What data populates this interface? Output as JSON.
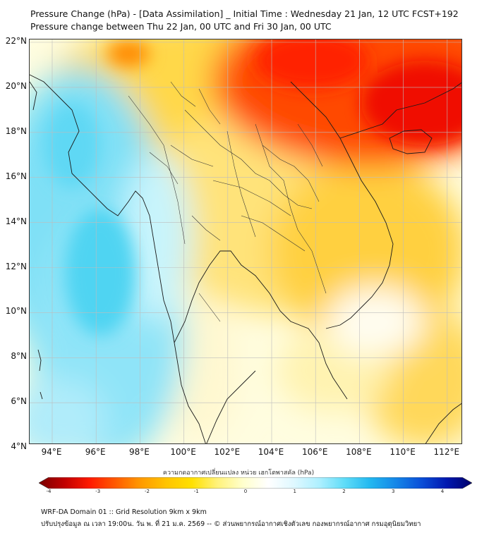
{
  "title_line1": "Pressure Change (hPa) - [Data Assimilation] _ Initial Time : Wednesday 21 Jan, 12 UTC FCST+192",
  "title_line2": "Pressure change between Thu 22 Jan, 00 UTC and Fri 30 Jan, 00 UTC",
  "lat_labels": [
    "22°N",
    "20°N",
    "18°N",
    "16°N",
    "14°N",
    "12°N",
    "10°N",
    "8°N",
    "6°N",
    "4°N"
  ],
  "lon_labels": [
    "94°E",
    "96°E",
    "98°E",
    "100°E",
    "102°E",
    "104°E",
    "106°E",
    "108°E",
    "110°E",
    "112°E"
  ],
  "colorbar": {
    "title": "ความกดอากาศเปลี่ยนแปลง หน่วย เฮกโตพาสคัล (hPa)",
    "ticks": [
      "-4",
      "-3",
      "-2",
      "-1",
      "0",
      "1",
      "2",
      "3",
      "4"
    ],
    "min": -4,
    "max": 4,
    "colors": [
      "#7a0000",
      "#c00000",
      "#ff1a00",
      "#ff5a00",
      "#ff9a00",
      "#ffc400",
      "#ffe000",
      "#fff27a",
      "#ffffcc",
      "#ffffff",
      "#dff8ff",
      "#aef0ff",
      "#5fdcf8",
      "#22b8f0",
      "#1487e8",
      "#0a4fd8",
      "#0018b0",
      "#00006a"
    ]
  },
  "map": {
    "fill_colors": {
      "hot": "#ff1800",
      "warm": "#ffb000",
      "mild": "#ffe27a",
      "neutral": "#fffde6",
      "cool": "#b8f0fb",
      "cold": "#5fd8f4"
    }
  },
  "footer_line1": "WRF-DA Domain 01 :: Grid Resolution 9km x 9km",
  "footer_line2": "ปรับปรุงข้อมูล ณ เวลา 19:00น. วัน พ. ที่ 21 ม.ค. 2569 -- © ส่วนพยากรณ์อากาศเชิงตัวเลข กองพยากรณ์อากาศ กรมอุตุนิยมวิทยา"
}
